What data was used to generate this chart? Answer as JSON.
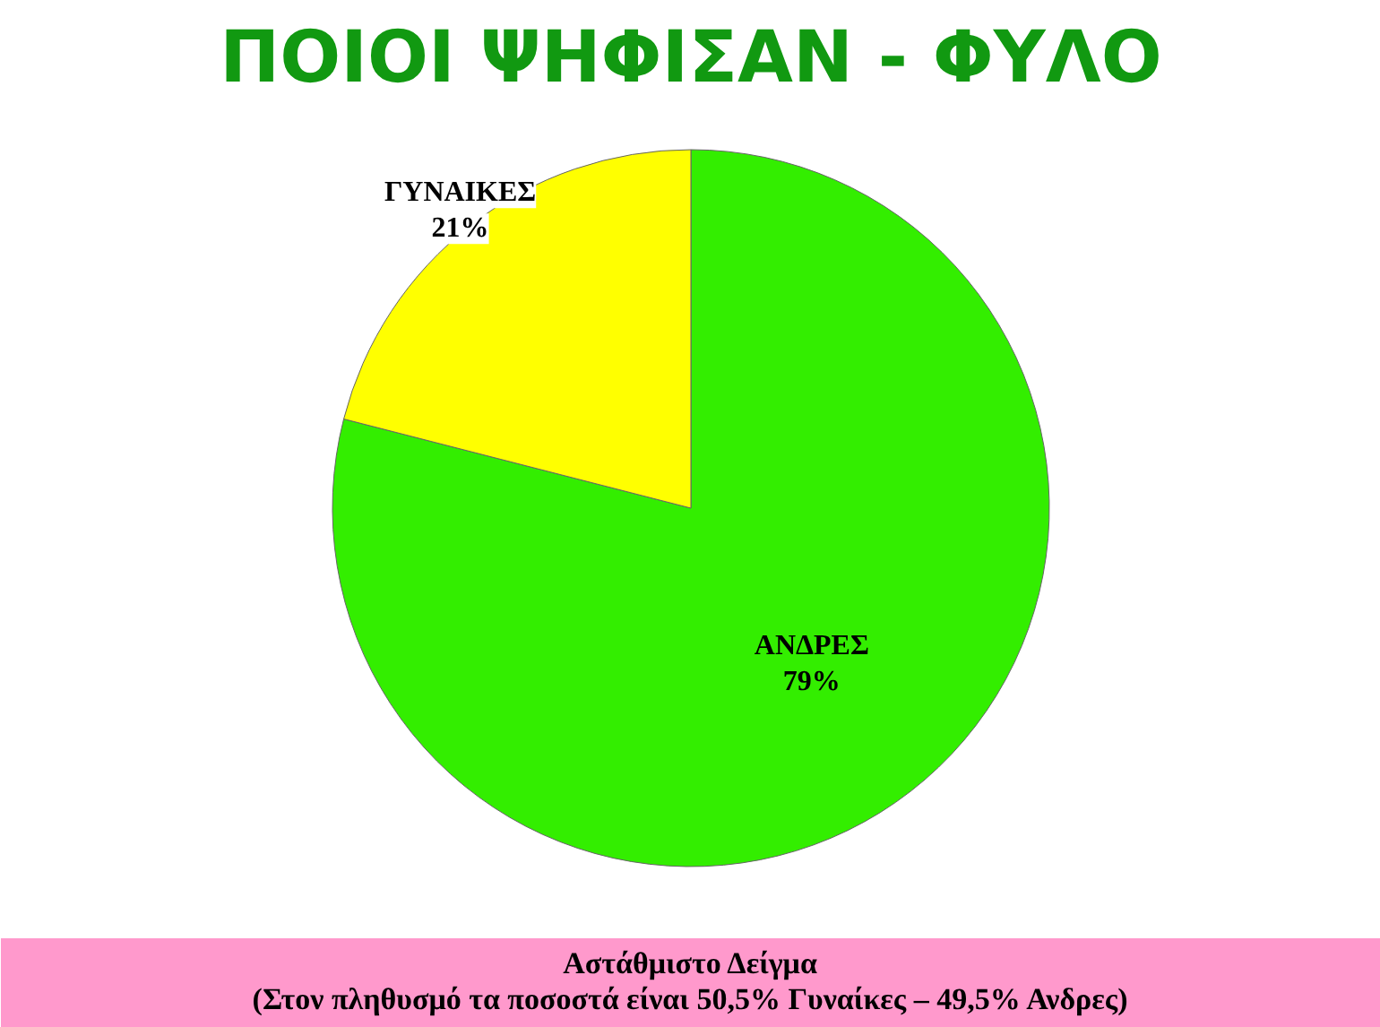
{
  "chart_data": {
    "type": "pie",
    "title": "ΠΟΙΟΙ ΨΗΦΙΣΑΝ - ΦΥΛΟ",
    "categories": [
      "ΑΝΔΡΕΣ",
      "ΓΥΝΑΙΚΕΣ"
    ],
    "values": [
      79,
      21
    ],
    "colors": [
      "#33ee00",
      "#ffff00"
    ],
    "value_labels": [
      "79%",
      "21%"
    ],
    "annotations": [
      "Αστάθμιστο Δείγμα",
      "(Στον πληθυσμό τα ποσοστά είναι 50,5% Γυναίκες – 49,5% Ανδρες)"
    ]
  }
}
